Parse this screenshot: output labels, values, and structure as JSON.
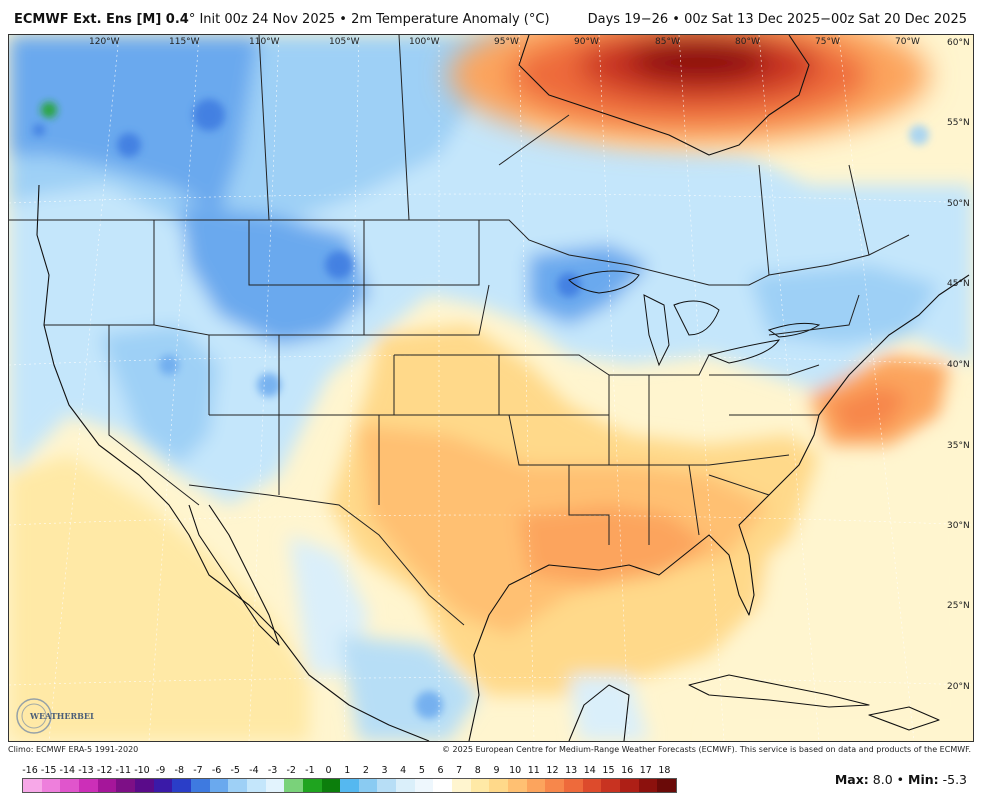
{
  "header": {
    "model": "ECMWF Ext. Ens [M] 0.4",
    "degree": "°",
    "init": "Init 00z 24 Nov 2025",
    "bullet": "•",
    "variable": "2m Temperature Anomaly (°C)",
    "valid": "Days 19−26 • 00z Sat 13 Dec 2025−00z Sat 20 Dec 2025"
  },
  "longitudes": [
    "120°W",
    "115°W",
    "110°W",
    "105°W",
    "100°W",
    "95°W",
    "90°W",
    "85°W",
    "80°W",
    "75°W",
    "70°W"
  ],
  "latitudes": [
    "60°N",
    "55°N",
    "50°N",
    "45°N",
    "40°N",
    "35°N",
    "30°N",
    "25°N",
    "20°N"
  ],
  "footer": {
    "climo": "Climo: ECMWF ERA-5 1991-2020",
    "copyright": "© 2025 European Centre for Medium-Range Weather Forecasts (ECMWF). This service is based on data and products of the ECMWF."
  },
  "logo": {
    "text": "WEATHERBELL"
  },
  "colorbar": {
    "labels": [
      "-16",
      "-15",
      "-14",
      "-13",
      "-12",
      "-11",
      "-10",
      "-9",
      "-8",
      "-7",
      "-6",
      "-5",
      "-4",
      "-3",
      "-2",
      "-1",
      "0",
      "1",
      "2",
      "3",
      "4",
      "5",
      "6",
      "7",
      "8",
      "9",
      "10",
      "11",
      "12",
      "13",
      "14",
      "15",
      "16",
      "17",
      "18"
    ],
    "colors": [
      "#f7a8e8",
      "#ee7fdc",
      "#e055cc",
      "#cc2fb8",
      "#a5169a",
      "#7d0f86",
      "#5a0b8a",
      "#3a1aa8",
      "#2a3ec8",
      "#3e7ae0",
      "#6aa9ee",
      "#9ed0f6",
      "#c4e6fb",
      "#e2f3fd",
      "#7ad27a",
      "#1fa41f",
      "#0c7e0c",
      "#55b8f0",
      "#8acbf2",
      "#b7def6",
      "#daeffa",
      "#eef7fd",
      "#ffffff",
      "#fff5cf",
      "#ffe9a6",
      "#ffd98a",
      "#ffc072",
      "#fca45d",
      "#f7874b",
      "#ee6a3b",
      "#dd4b2c",
      "#c83321",
      "#ae1f16",
      "#8c110d",
      "#6a0a08"
    ]
  },
  "stats": {
    "max_label": "Max:",
    "max": "8.0",
    "sep": "•",
    "min_label": "Min:",
    "min": "-5.3"
  }
}
